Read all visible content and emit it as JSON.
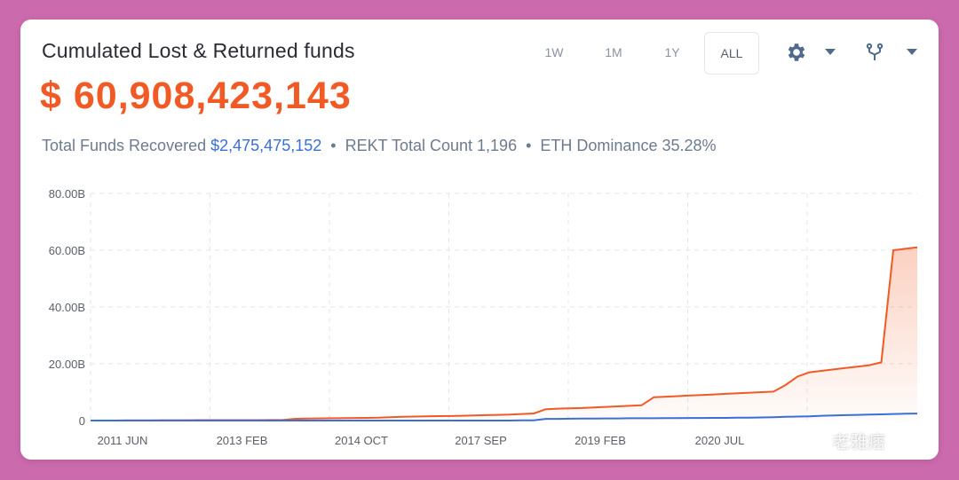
{
  "header": {
    "title": "Cumulated Lost & Returned funds",
    "amount": "$ 60,908,423,143"
  },
  "stats": {
    "recovered_label": "Total Funds Recovered",
    "recovered_value": "$2,475,475,152",
    "rekt_count_label": "REKT Total Count",
    "rekt_count_value": "1,196",
    "eth_dom_label": "ETH Dominance",
    "eth_dom_value": "35.28%"
  },
  "timeframes": [
    "1W",
    "1M",
    "1Y",
    "ALL"
  ],
  "active_timeframe": "ALL",
  "toolbar": {
    "settings_icon": "gear-icon",
    "settings_dropdown_icon": "caret-down-icon",
    "compare_icon": "fork-icon",
    "compare_dropdown_icon": "caret-down-icon"
  },
  "watermark": "老雅痞",
  "colors": {
    "lost": "#f15a24",
    "returned": "#3a6fd8",
    "accent": "#f15a24"
  },
  "chart_data": {
    "type": "area",
    "x_tick_labels": [
      "2011 JUN",
      "2013 FEB",
      "2014 OCT",
      "2017 SEP",
      "2019 FEB",
      "2020 JUL"
    ],
    "y_tick_labels": [
      "0",
      "20.00B",
      "40.00B",
      "60.00B",
      "80.00B"
    ],
    "ylim": [
      0,
      80
    ],
    "grid": true,
    "series": [
      {
        "color": "#f15a24",
        "fill": true,
        "values": [
          0,
          0,
          0,
          0.05,
          0.1,
          0.1,
          0.12,
          0.13,
          0.14,
          0.15,
          0.15,
          0.15,
          0.16,
          0.16,
          0.17,
          0.18,
          0.2,
          0.6,
          0.7,
          0.75,
          0.8,
          0.85,
          0.9,
          0.95,
          1.0,
          1.2,
          1.3,
          1.4,
          1.5,
          1.55,
          1.6,
          1.7,
          1.8,
          1.9,
          2.0,
          2.1,
          2.3,
          2.5,
          4.0,
          4.2,
          4.3,
          4.4,
          4.6,
          4.8,
          5.0,
          5.2,
          5.4,
          8.2,
          8.4,
          8.6,
          8.8,
          9.0,
          9.2,
          9.4,
          9.6,
          9.8,
          10.0,
          10.2,
          12.5,
          15.5,
          17.0,
          17.5,
          18.0,
          18.5,
          19.0,
          19.5,
          20.5,
          60.0,
          60.5,
          61.0
        ]
      },
      {
        "color": "#3a6fd8",
        "fill": false,
        "values": [
          0,
          0,
          0,
          0,
          0,
          0,
          0,
          0,
          0,
          0,
          0,
          0,
          0,
          0,
          0,
          0,
          0,
          0,
          0,
          0,
          0,
          0,
          0,
          0,
          0,
          0,
          0,
          0,
          0,
          0,
          0,
          0,
          0,
          0,
          0,
          0,
          0.05,
          0.1,
          0.6,
          0.6,
          0.65,
          0.7,
          0.7,
          0.75,
          0.75,
          0.8,
          0.8,
          0.8,
          0.85,
          0.85,
          0.9,
          0.9,
          0.95,
          0.95,
          1.0,
          1.0,
          1.1,
          1.2,
          1.3,
          1.4,
          1.5,
          1.7,
          1.8,
          1.9,
          2.0,
          2.1,
          2.2,
          2.3,
          2.4,
          2.475
        ]
      }
    ]
  }
}
